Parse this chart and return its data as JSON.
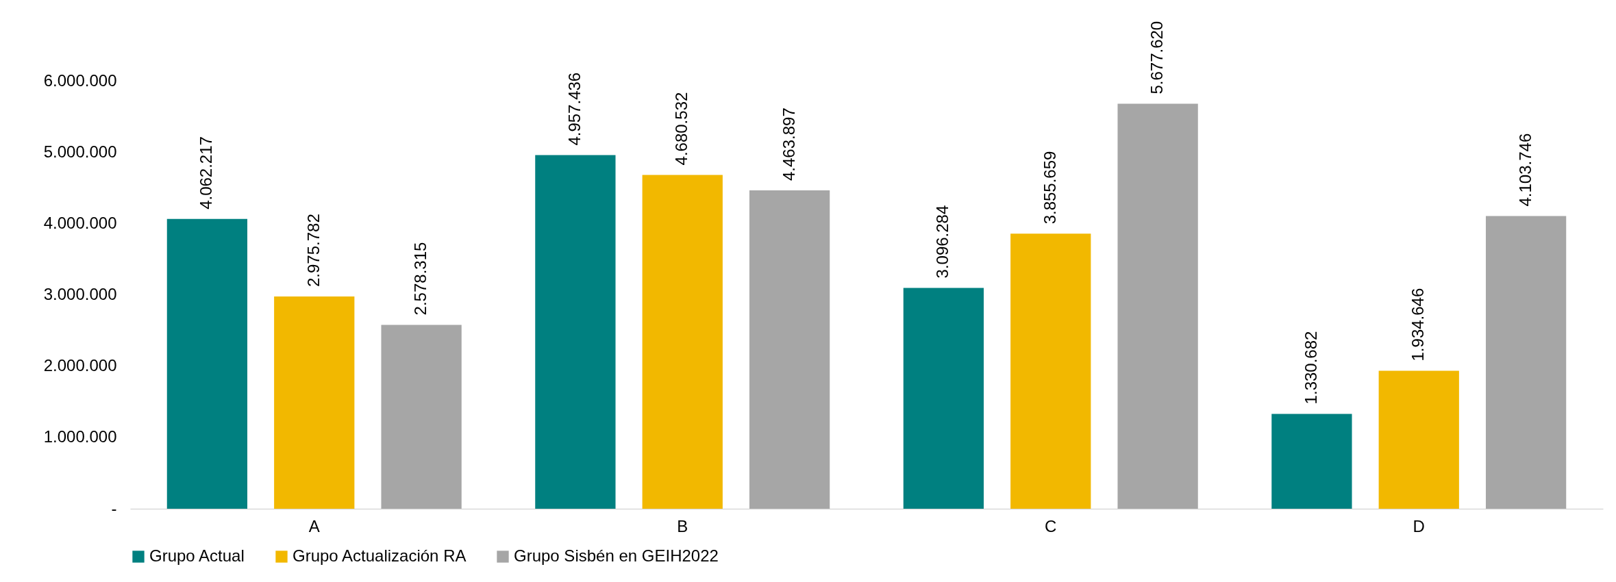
{
  "chart_data": {
    "type": "bar",
    "categories": [
      "A",
      "B",
      "C",
      "D"
    ],
    "series": [
      {
        "name": "Grupo Actual",
        "color": "#008080",
        "values": [
          4062217,
          4957436,
          3096284,
          1330682
        ],
        "value_labels": [
          "4.062.217",
          "4.957.436",
          "3.096.284",
          "1.330.682"
        ]
      },
      {
        "name": "Grupo Actualización RA",
        "color": "#f2b800",
        "values": [
          2975782,
          4680532,
          3855659,
          1934646
        ],
        "value_labels": [
          "2.975.782",
          "4.680.532",
          "3.855.659",
          "1.934.646"
        ]
      },
      {
        "name": "Grupo Sisbén en GEIH2022",
        "color": "#a6a6a6",
        "values": [
          2578315,
          4463897,
          5677620,
          4103746
        ],
        "value_labels": [
          "2.578.315",
          "4.463.897",
          "5.677.620",
          "4.103.746"
        ]
      }
    ],
    "ylim": [
      0,
      6000000
    ],
    "yticks": [
      {
        "value": 0,
        "label": "-"
      },
      {
        "value": 1000000,
        "label": "1.000.000"
      },
      {
        "value": 2000000,
        "label": "2.000.000"
      },
      {
        "value": 3000000,
        "label": "3.000.000"
      },
      {
        "value": 4000000,
        "label": "4.000.000"
      },
      {
        "value": 5000000,
        "label": "5.000.000"
      },
      {
        "value": 6000000,
        "label": "6.000.000"
      }
    ],
    "grid": false,
    "legend": "bottom"
  }
}
